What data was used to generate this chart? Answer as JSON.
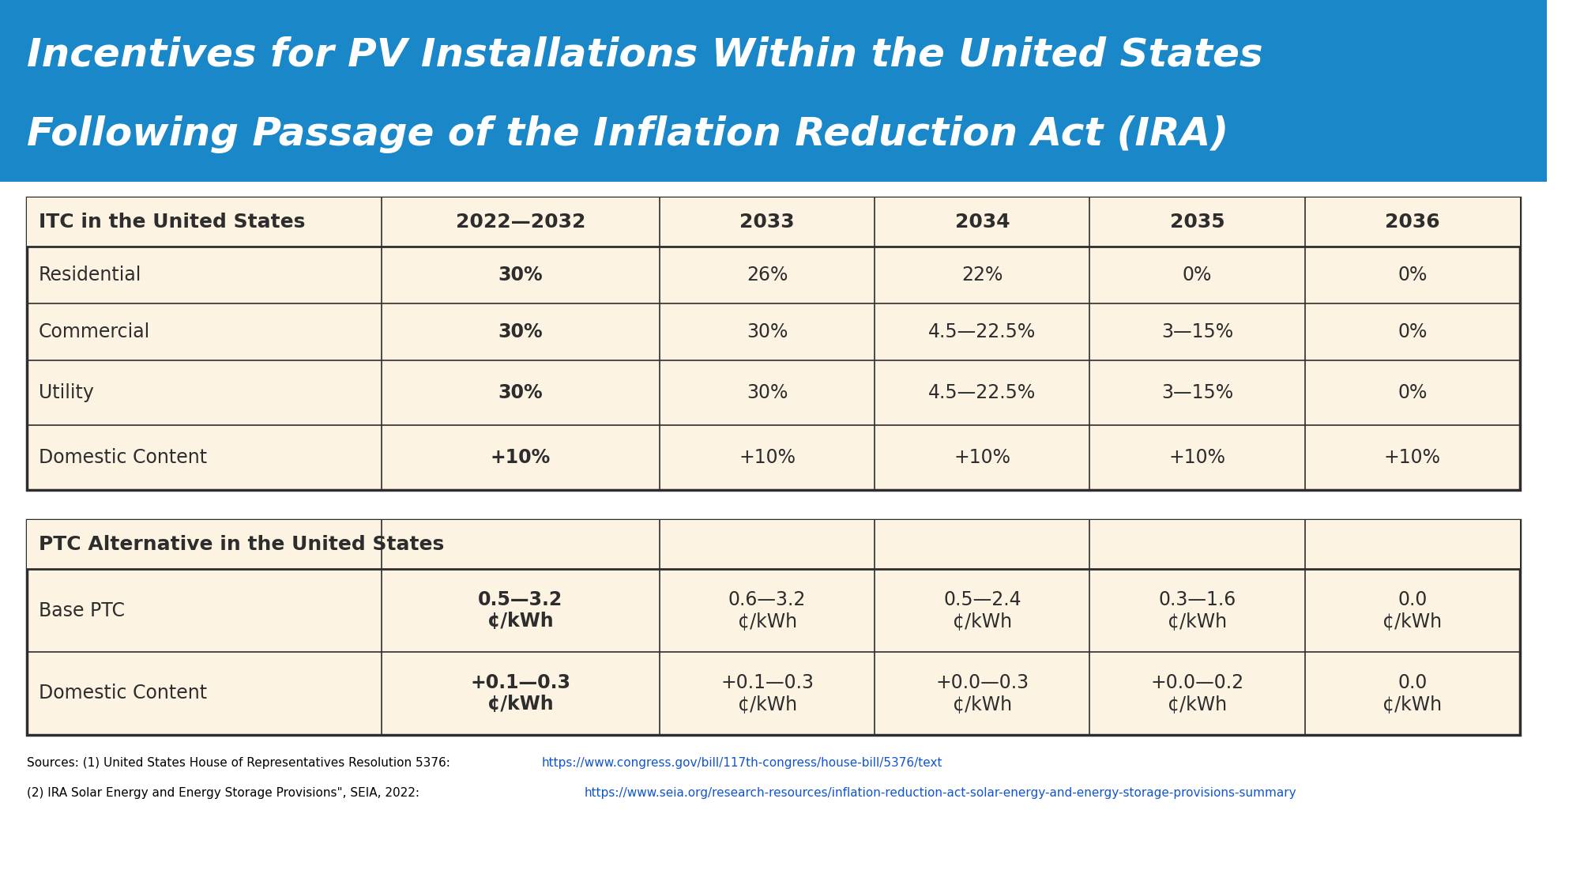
{
  "title_line1": "Incentives for PV Installations Within the United States",
  "title_line2": "Following Passage of the Inflation Reduction Act (IRA)",
  "title_bg": "#1a87c8",
  "title_color": "#ffffff",
  "table_bg": "#fdf3e3",
  "table_border": "#2d2d2d",
  "header_bg": "#fdf3e3",
  "itc_header": "ITC in the United States",
  "itc_col_headers": [
    "2022—2032",
    "2033",
    "2034",
    "2035",
    "2036"
  ],
  "itc_rows": [
    [
      "Residential",
      "30%",
      "26%",
      "22%",
      "0%",
      "0%"
    ],
    [
      "Commercial",
      "30%",
      "30%",
      "4.5—22.5%",
      "3—15%",
      "0%"
    ],
    [
      "Utility",
      "30%",
      "30%",
      "4.5—22.5%",
      "3—15%",
      "0%"
    ],
    [
      "Domestic Content",
      "+10%",
      "+10%",
      "+10%",
      "+10%",
      "+10%"
    ]
  ],
  "itc_bold_col": 1,
  "ptc_header": "PTC Alternative in the United States",
  "ptc_rows": [
    [
      "Base PTC",
      "0.5—3.2\n¢/kWh",
      "0.6—3.2\n¢/kWh",
      "0.5—2.4\n¢/kWh",
      "0.3—1.6\n¢/kWh",
      "0.0\n¢/kWh"
    ],
    [
      "Domestic Content",
      "+0.1—0.3\n¢/kWh",
      "+0.1—0.3\n¢/kWh",
      "+0.0—0.3\n¢/kWh",
      "+0.0—0.2\n¢/kWh",
      "0.0\n¢/kWh"
    ]
  ],
  "ptc_bold_col": 1,
  "source_text1_plain": "Sources: (1) United States House of Representatives Resolution 5376: ",
  "source_text1_link": "https://www.congress.gov/bill/117th-congress/house-bill/5376/text",
  "source_text2_plain": "(2) IRA Solar Energy and Energy Storage Provisions\", SEIA, 2022: ",
  "source_text2_link": "https://www.seia.org/research-resources/inflation-reduction-act-solar-energy-and-energy-storage-provisions-summary",
  "source_color": "#000000",
  "link_color": "#1155cc",
  "bg_color": "#ffffff"
}
